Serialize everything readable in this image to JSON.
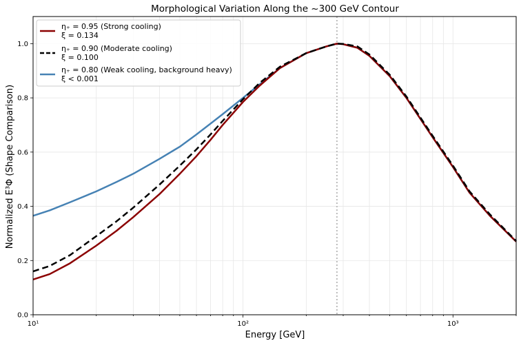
{
  "chart_data": {
    "type": "line",
    "title": "Morphological Variation Along the  ~300 GeV Contour",
    "xlabel": "Energy [GeV]",
    "ylabel": "Normalized E³Φ (Shape Comparison)",
    "xscale": "log",
    "xlim": [
      10,
      2000
    ],
    "ylim": [
      0.0,
      1.1
    ],
    "x_ticks": [
      {
        "value": 10,
        "label": "10¹"
      },
      {
        "value": 100,
        "label": "10²"
      },
      {
        "value": 1000,
        "label": "10³"
      }
    ],
    "y_ticks": [
      {
        "value": 0.0,
        "label": "0.0"
      },
      {
        "value": 0.2,
        "label": "0.2"
      },
      {
        "value": 0.4,
        "label": "0.4"
      },
      {
        "value": 0.6,
        "label": "0.6"
      },
      {
        "value": 0.8,
        "label": "0.8"
      },
      {
        "value": 1.0,
        "label": "1.0"
      }
    ],
    "grid": true,
    "legend_position": "top-left",
    "vline": {
      "x": 280,
      "color": "#bbbbbb",
      "style": "dotted"
    },
    "series": [
      {
        "name": "η₊ = 0.95 (Strong cooling)",
        "name_line2": "ξ = 0.134",
        "color": "#8b0000",
        "style": "solid",
        "x": [
          10,
          12,
          15,
          20,
          25,
          30,
          40,
          50,
          60,
          70,
          80,
          100,
          120,
          150,
          200,
          250,
          280,
          300,
          350,
          400,
          500,
          600,
          800,
          1000,
          1200,
          1500,
          2000
        ],
        "y": [
          0.13,
          0.15,
          0.19,
          0.255,
          0.31,
          0.36,
          0.445,
          0.52,
          0.585,
          0.645,
          0.7,
          0.785,
          0.845,
          0.91,
          0.965,
          0.99,
          1.0,
          0.998,
          0.985,
          0.955,
          0.88,
          0.8,
          0.655,
          0.545,
          0.45,
          0.365,
          0.27
        ]
      },
      {
        "name": "η₊ = 0.90 (Moderate cooling)",
        "name_line2": "ξ = 0.100",
        "color": "#000000",
        "style": "dashed",
        "x": [
          10,
          12,
          15,
          20,
          25,
          30,
          40,
          50,
          60,
          70,
          80,
          100,
          120,
          150,
          200,
          250,
          280,
          300,
          350,
          400,
          500,
          600,
          800,
          1000,
          1200,
          1500,
          2000
        ],
        "y": [
          0.16,
          0.18,
          0.22,
          0.29,
          0.345,
          0.395,
          0.48,
          0.55,
          0.61,
          0.665,
          0.715,
          0.795,
          0.855,
          0.915,
          0.965,
          0.99,
          1.0,
          0.999,
          0.99,
          0.96,
          0.885,
          0.805,
          0.66,
          0.55,
          0.455,
          0.37,
          0.272
        ]
      },
      {
        "name": "η₊ = 0.80 (Weak cooling, background heavy)",
        "name_line2": "ξ < 0.001",
        "color": "#4682b4",
        "style": "solid",
        "x": [
          10,
          12,
          15,
          20,
          25,
          30,
          40,
          50,
          60,
          70,
          80,
          100,
          120,
          150,
          200,
          250,
          280,
          300,
          350,
          400,
          500,
          600,
          800,
          1000,
          1200,
          1500,
          2000
        ],
        "y": [
          0.365,
          0.385,
          0.415,
          0.455,
          0.49,
          0.52,
          0.575,
          0.62,
          0.665,
          0.705,
          0.74,
          0.8,
          0.85,
          0.91,
          0.965,
          0.99,
          1.0,
          0.998,
          0.985,
          0.955,
          0.88,
          0.8,
          0.655,
          0.545,
          0.45,
          0.365,
          0.27
        ]
      }
    ]
  }
}
